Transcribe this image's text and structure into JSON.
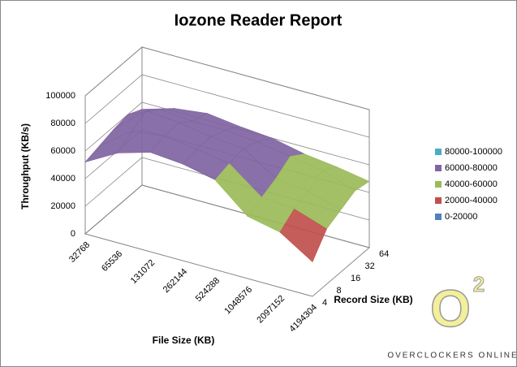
{
  "chart_data": {
    "type": "surface",
    "title": "Iozone Reader Report",
    "xlabel": "File Size (KB)",
    "depth_label": "Record Size (KB)",
    "ylabel": "Throughput (KB/s)",
    "categories": [
      "32768",
      "65536",
      "131072",
      "262144",
      "524288",
      "1048576",
      "2097152",
      "4194304"
    ],
    "series": [
      {
        "name": "4",
        "values": [
          52000,
          65000,
          72000,
          70000,
          65000,
          45000,
          40000,
          25000
        ]
      },
      {
        "name": "8",
        "values": [
          55000,
          72000,
          75000,
          72000,
          68000,
          50000,
          48000,
          40000
        ]
      },
      {
        "name": "16",
        "values": [
          58000,
          78000,
          76000,
          72000,
          70000,
          55000,
          52000,
          45000
        ]
      },
      {
        "name": "32",
        "values": [
          60000,
          70000,
          68000,
          68000,
          66000,
          62000,
          58000,
          50000
        ]
      },
      {
        "name": "64",
        "values": [
          55000,
          62000,
          65000,
          62000,
          60000,
          55000,
          52000,
          48000
        ]
      }
    ],
    "ylim": [
      0,
      100000
    ],
    "yticks": [
      0,
      20000,
      40000,
      60000,
      80000,
      100000
    ],
    "grid": true,
    "legend_position": "right",
    "legend": [
      {
        "name": "80000-100000",
        "color": "#4bacc6"
      },
      {
        "name": "60000-80000",
        "color": "#8064a2"
      },
      {
        "name": "40000-60000",
        "color": "#9bbb59"
      },
      {
        "name": "20000-40000",
        "color": "#c0504d"
      },
      {
        "name": "0-20000",
        "color": "#4f81bd"
      }
    ]
  },
  "watermark": {
    "symbol": "O",
    "superscript": "2",
    "text": "OVERCLOCKERS ONLINE"
  }
}
